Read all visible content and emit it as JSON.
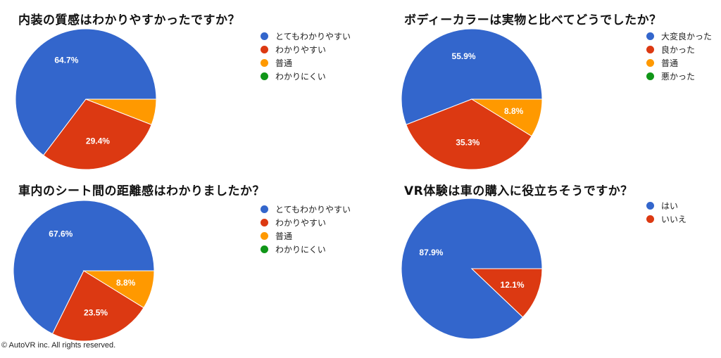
{
  "colors": {
    "blue": "#3366cc",
    "red": "#dc3912",
    "orange": "#ff9900",
    "green": "#109618"
  },
  "chart_data": [
    {
      "type": "pie",
      "title": "内装の質感はわかりやすかったですか？",
      "categories": [
        "とてもわかりやすい",
        "わかりやすい",
        "普通",
        "わかりにくい"
      ],
      "values": [
        64.7,
        29.4,
        5.9,
        0
      ],
      "data_labels": [
        "64.7%",
        "29.4%",
        "",
        ""
      ],
      "legend_position": "right"
    },
    {
      "type": "pie",
      "title": "ボディーカラーは実物と比べてどうでしたか？",
      "categories": [
        "大変良かった",
        "良かった",
        "普通",
        "悪かった"
      ],
      "values": [
        55.9,
        35.3,
        8.8,
        0
      ],
      "data_labels": [
        "55.9%",
        "35.3%",
        "8.8%",
        ""
      ],
      "legend_position": "right"
    },
    {
      "type": "pie",
      "title": "車内のシート間の距離感はわかりましたか？",
      "categories": [
        "とてもわかりやすい",
        "わかりやすい",
        "普通",
        "わかりにくい"
      ],
      "values": [
        67.6,
        23.5,
        8.8,
        0
      ],
      "data_labels": [
        "67.6%",
        "23.5%",
        "8.8%",
        ""
      ],
      "legend_position": "right"
    },
    {
      "type": "pie",
      "title": "VR体験は車の購入に役立ちそうですか？",
      "categories": [
        "はい",
        "いいえ"
      ],
      "values": [
        87.9,
        12.1
      ],
      "data_labels": [
        "87.9%",
        "12.1%"
      ],
      "legend_position": "right"
    }
  ],
  "footer": {
    "copyright": "© AutoVR inc. All rights reserved."
  }
}
